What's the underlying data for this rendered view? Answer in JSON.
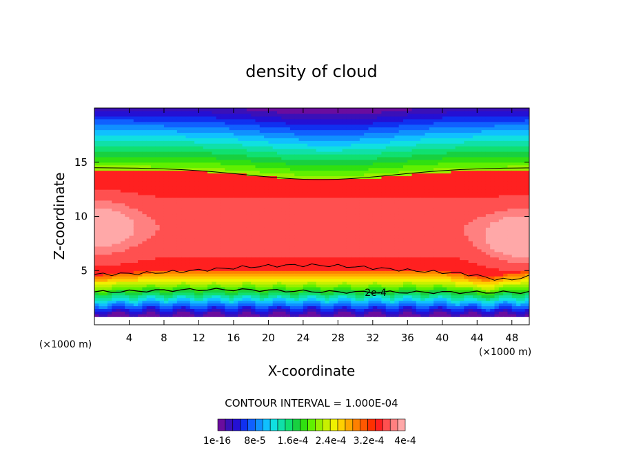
{
  "chart_data": {
    "type": "heatmap",
    "title": "density of cloud",
    "xlabel": "X-coordinate",
    "ylabel": "Z-coordinate",
    "x_unit": "(×1000 m)",
    "x_unit_right": "(×1000 m)",
    "xlim": [
      0,
      50
    ],
    "ylim": [
      0,
      20
    ],
    "x_ticks": [
      4,
      8,
      12,
      16,
      20,
      24,
      28,
      32,
      36,
      40,
      44,
      48
    ],
    "y_ticks": [
      5,
      10,
      15
    ],
    "contour_interval_text": "CONTOUR INTERVAL = 1.000E-04",
    "contour_label": "2e-4",
    "colorbar_labels": [
      "1e-16",
      "8e-5",
      "1.6e-4",
      "2.4e-4",
      "3.2e-4",
      "4e-4"
    ],
    "colorbar_colors": [
      "#6a0c9e",
      "#3a10b8",
      "#2410d4",
      "#1030f0",
      "#1060ff",
      "#1090ff",
      "#10c0ff",
      "#10e0e0",
      "#10e0a8",
      "#10e070",
      "#18d040",
      "#30e010",
      "#60f000",
      "#98f000",
      "#c8f000",
      "#f0f000",
      "#ffd000",
      "#ffa800",
      "#ff8000",
      "#ff5800",
      "#ff3000",
      "#ff2020",
      "#ff5050",
      "#ff8080",
      "#ffa8a8"
    ],
    "zmin": 1e-16,
    "zmax": 0.0004,
    "description_fields": {
      "high_region": "broad maximum between z≈5 and z≈14 across the domain, strongest near x≈0-4 and x≈44-50 at z≈7-11",
      "low_region": "values drop to ~0 below z≈1 and above z≈18"
    }
  }
}
